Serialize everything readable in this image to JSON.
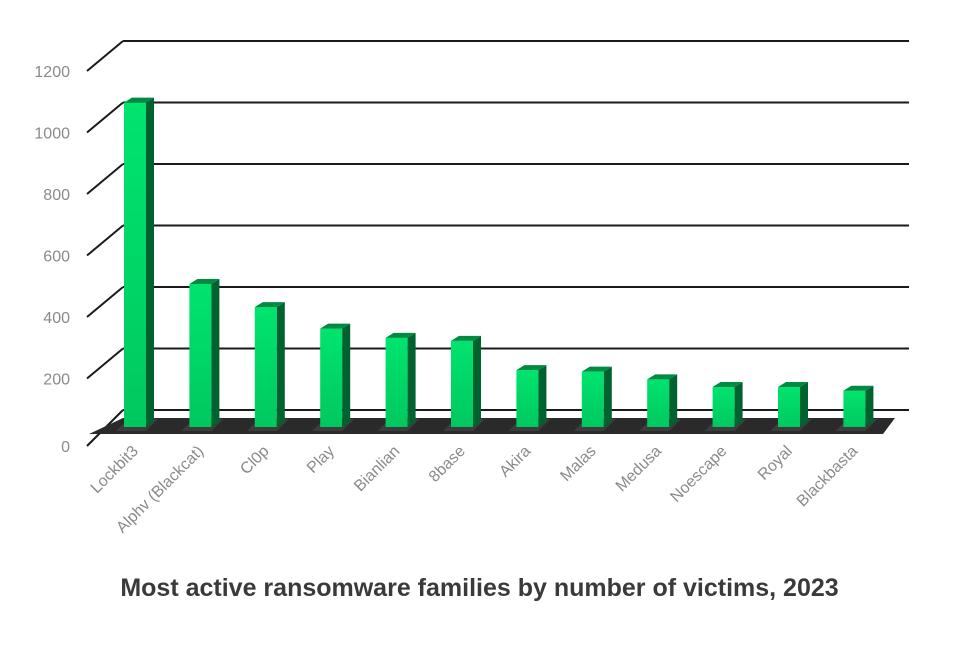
{
  "chart_data": {
    "type": "bar",
    "title": "Most active ransomware families by number of victims, 2023",
    "xlabel": "",
    "ylabel": "",
    "categories": [
      "Lockbit3",
      "Alphv (Blackcat)",
      "Cl0p",
      "Play",
      "Bianlian",
      "8base",
      "Akira",
      "Malas",
      "Medusa",
      "Noescape",
      "Royal",
      "Blackbasta"
    ],
    "values": [
      1055,
      465,
      390,
      320,
      290,
      280,
      185,
      180,
      155,
      130,
      130,
      118
    ],
    "ylim": [
      0,
      1200
    ],
    "yticks": [
      "0",
      "200",
      "400",
      "600",
      "800",
      "1000",
      "1200"
    ],
    "grid": true,
    "legend": "none",
    "colors": {
      "bar_front_top": "#00e46e",
      "bar_front_bottom": "#00c85f",
      "bar_side": "#00632f",
      "bar_top": "#008a42",
      "gridline": "#1a1a1a",
      "tick_text": "#8a8a8a",
      "title_text": "#3a3a3a"
    }
  }
}
